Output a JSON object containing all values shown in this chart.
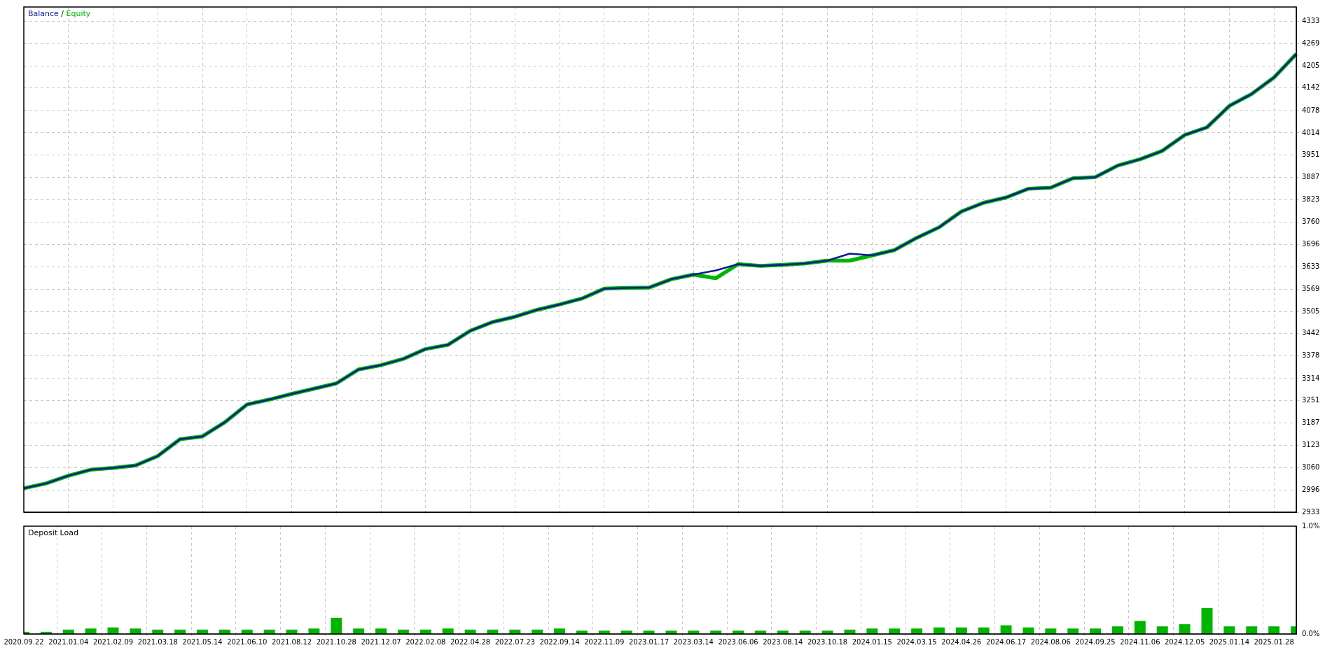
{
  "chart_data": [
    {
      "type": "line",
      "legend": "top left",
      "annotations": [
        "/"
      ],
      "grid": true,
      "marker": "none",
      "tick_labels": "y",
      "categories": [
        "2020.09.22",
        null,
        "2021.01.04",
        null,
        "2021.02.09",
        null,
        "2021.03.18",
        null,
        "2021.05.14",
        null,
        "2021.06.10",
        null,
        "2021.08.12",
        null,
        "2021.10.28",
        null,
        "2021.12.07",
        null,
        "2022.02.08",
        null,
        "2022.04.28",
        null,
        "2022.07.23",
        null,
        "2022.09.14",
        null,
        "2022.11.09",
        null,
        "2023.01.17",
        null,
        "2023.03.14",
        null,
        "2023.06.06",
        null,
        "2023.08.14",
        null,
        "2023.10.18",
        null,
        "2024.01.15",
        null,
        "2024.03.15",
        null,
        "2024.04.26",
        null,
        "2024.06.17",
        null,
        "2024.08.06",
        null,
        "2024.09.25",
        null,
        "2024.11.06",
        null,
        "2024.12.05",
        null,
        "2025.01.14",
        null,
        "2025.01.28",
        null
      ],
      "ylim": [
        2933,
        4373
      ],
      "yticks": [
        2933,
        2996,
        3060,
        3123,
        3187,
        3251,
        3314,
        3378,
        3442,
        3505,
        3569,
        3633,
        3696,
        3760,
        3823,
        3887,
        3951,
        4014,
        4078,
        4142,
        4205,
        4269,
        4333
      ],
      "series": [
        {
          "name": "Balance",
          "color": "#0a1a9a",
          "values": [
            3001,
            3015,
            3037,
            3054,
            3059,
            3066,
            3093,
            3141,
            3149,
            3189,
            3240,
            3254,
            3270,
            3285,
            3300,
            3340,
            3352,
            3370,
            3398,
            3410,
            3450,
            3475,
            3490,
            3510,
            3525,
            3542,
            3570,
            3572,
            3573,
            3597,
            3610,
            3622,
            3640,
            3635,
            3638,
            3642,
            3650,
            3670,
            3665,
            3680,
            3715,
            3745,
            3790,
            3815,
            3830,
            3855,
            3858,
            3885,
            3888,
            3921,
            3939,
            3963,
            4008,
            4030,
            4091,
            4125,
            4172,
            4239
          ]
        },
        {
          "name": "Equity",
          "color": "#00b400",
          "values": [
            3001,
            3015,
            3037,
            3054,
            3059,
            3066,
            3093,
            3141,
            3149,
            3189,
            3240,
            3254,
            3270,
            3285,
            3300,
            3340,
            3352,
            3370,
            3398,
            3410,
            3450,
            3475,
            3490,
            3510,
            3525,
            3542,
            3570,
            3572,
            3573,
            3597,
            3610,
            3600,
            3640,
            3635,
            3638,
            3642,
            3650,
            3650,
            3665,
            3680,
            3715,
            3745,
            3790,
            3815,
            3830,
            3855,
            3858,
            3885,
            3888,
            3921,
            3939,
            3963,
            4008,
            4030,
            4091,
            4125,
            4172,
            4239
          ]
        }
      ]
    },
    {
      "type": "bar",
      "title": "Deposit Load",
      "grid": "x",
      "categories": [
        "2020.09.22",
        null,
        "2021.01.04",
        null,
        "2021.02.09",
        null,
        "2021.03.18",
        null,
        "2021.05.14",
        null,
        "2021.06.10",
        null,
        "2021.08.12",
        null,
        "2021.10.28",
        null,
        "2021.12.07",
        null,
        "2022.02.08",
        null,
        "2022.04.28",
        null,
        "2022.07.23",
        null,
        "2022.09.14",
        null,
        "2022.11.09",
        null,
        "2023.01.17",
        null,
        "2023.03.14",
        null,
        "2023.06.06",
        null,
        "2023.08.14",
        null,
        "2023.10.18",
        null,
        "2024.01.15",
        null,
        "2024.03.15",
        null,
        "2024.04.26",
        null,
        "2024.06.17",
        null,
        "2024.08.06",
        null,
        "2024.09.25",
        null,
        "2024.11.06",
        null,
        "2024.12.05",
        null,
        "2025.01.14",
        null,
        "2025.01.28",
        null
      ],
      "ylim": [
        0,
        1
      ],
      "yticks": [
        {
          "value": 0,
          "label": "0.0%"
        },
        {
          "value": 1,
          "label": "1.0%"
        }
      ],
      "series": [
        {
          "color": "#00b400",
          "values": [
            0.02,
            0.02,
            0.04,
            0.05,
            0.06,
            0.05,
            0.04,
            0.04,
            0.04,
            0.04,
            0.04,
            0.04,
            0.04,
            0.05,
            0.15,
            0.05,
            0.05,
            0.04,
            0.04,
            0.05,
            0.04,
            0.04,
            0.04,
            0.04,
            0.05,
            0.03,
            0.03,
            0.03,
            0.03,
            0.03,
            0.03,
            0.03,
            0.03,
            0.03,
            0.03,
            0.03,
            0.03,
            0.04,
            0.05,
            0.05,
            0.05,
            0.06,
            0.06,
            0.06,
            0.08,
            0.06,
            0.05,
            0.05,
            0.05,
            0.07,
            0.12,
            0.07,
            0.09,
            0.24,
            0.07,
            0.07,
            0.07,
            0.07
          ]
        }
      ]
    }
  ]
}
